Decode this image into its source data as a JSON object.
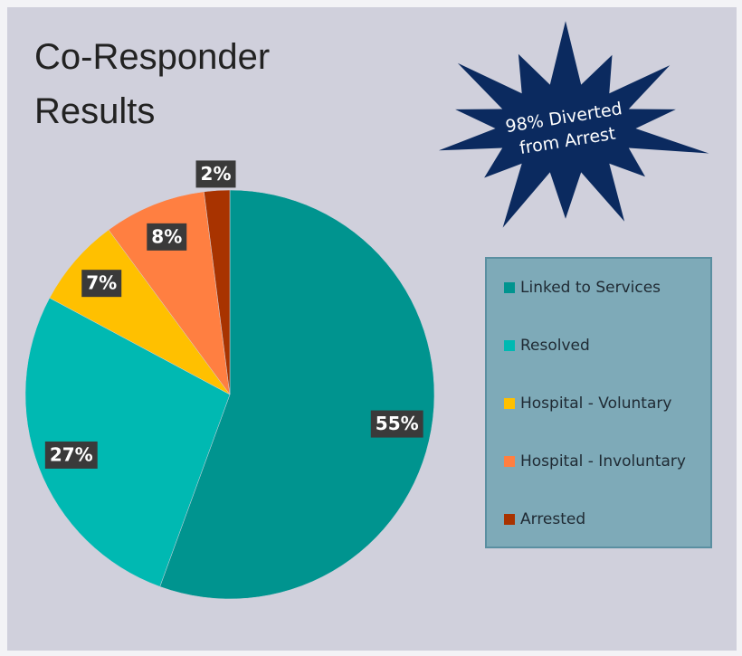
{
  "chart_data": {
    "type": "pie",
    "title": [
      "Co-Responder",
      "Results"
    ],
    "annotation": [
      "98% Diverted",
      "from Arrest"
    ],
    "categories": [
      "Linked to Services",
      "Resolved",
      "Hospital - Voluntary",
      "Hospital - Involuntary",
      "Arrested"
    ],
    "values": [
      55,
      27,
      7,
      8,
      2
    ],
    "value_labels": [
      "55%",
      "27%",
      "7%",
      "8%",
      "2%"
    ],
    "colors": [
      "#00948f",
      "#00b9b2",
      "#ffc000",
      "#ff7f41",
      "#a83300"
    ],
    "legend": "right"
  }
}
